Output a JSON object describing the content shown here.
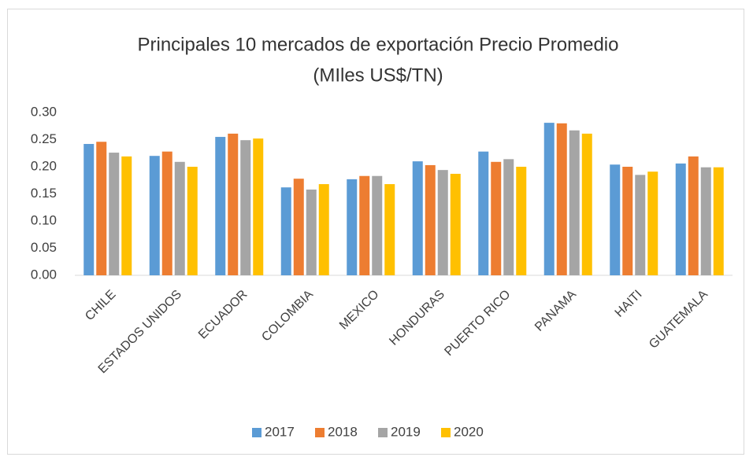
{
  "chart_data": {
    "type": "bar",
    "title": [
      "Principales 10 mercados de exportación Precio Promedio",
      "(MIles US$/TN)"
    ],
    "categories": [
      "CHILE",
      "ESTADOS UNIDOS",
      "ECUADOR",
      "COLOMBIA",
      "MEXICO",
      "HONDURAS",
      "PUERTO RICO",
      "PANAMA",
      "HAITI",
      "GUATEMALA"
    ],
    "series": [
      {
        "name": "2017",
        "color": "#5b9bd5",
        "values": [
          0.242,
          0.22,
          0.255,
          0.162,
          0.177,
          0.21,
          0.228,
          0.281,
          0.204,
          0.206
        ]
      },
      {
        "name": "2018",
        "color": "#ed7d31",
        "values": [
          0.246,
          0.228,
          0.261,
          0.178,
          0.183,
          0.203,
          0.209,
          0.28,
          0.2,
          0.219
        ]
      },
      {
        "name": "2019",
        "color": "#a5a5a5",
        "values": [
          0.226,
          0.209,
          0.249,
          0.158,
          0.183,
          0.194,
          0.214,
          0.267,
          0.185,
          0.199
        ]
      },
      {
        "name": "2020",
        "color": "#ffc000",
        "values": [
          0.219,
          0.2,
          0.252,
          0.168,
          0.168,
          0.187,
          0.2,
          0.261,
          0.191,
          0.199
        ]
      }
    ],
    "ylim": [
      0,
      0.3
    ],
    "yticks": [
      {
        "value": 0,
        "label": "0.00"
      },
      {
        "value": 0.05,
        "label": "0.05"
      },
      {
        "value": 0.1,
        "label": "0.10"
      },
      {
        "value": 0.15,
        "label": "0.15"
      },
      {
        "value": 0.2,
        "label": "0.20"
      },
      {
        "value": 0.25,
        "label": "0.25"
      },
      {
        "value": 0.3,
        "label": "0.30"
      }
    ],
    "grid": false,
    "legend": "bottom"
  }
}
